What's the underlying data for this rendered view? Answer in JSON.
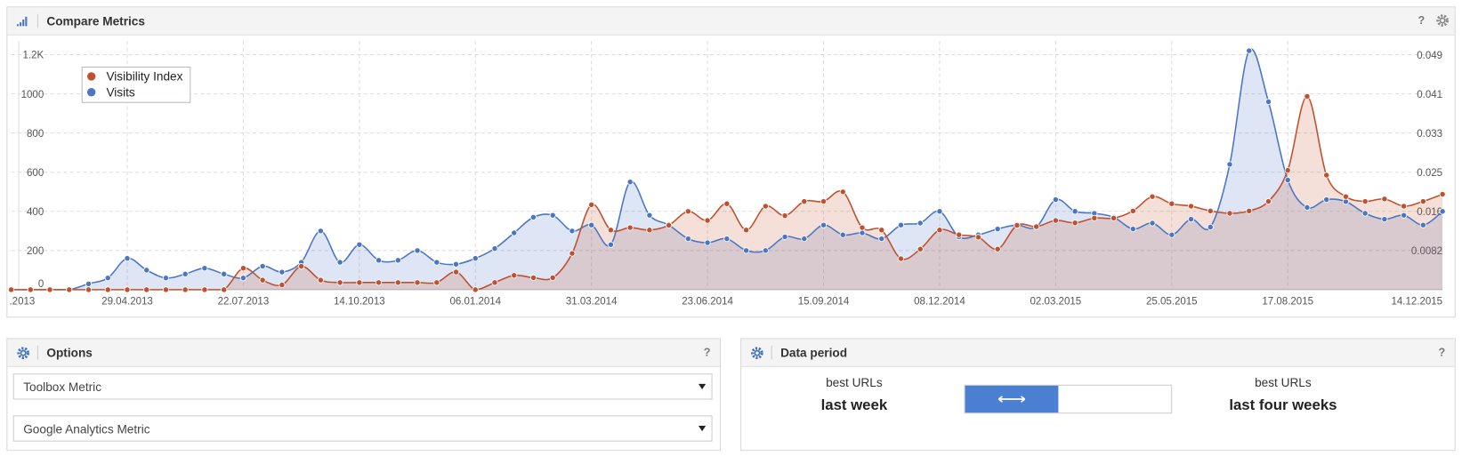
{
  "header": {
    "title": "Compare Metrics",
    "help": "?"
  },
  "chart_data": {
    "type": "area-line",
    "categories": [
      ".2013",
      null,
      null,
      null,
      null,
      null,
      "29.04.2013",
      null,
      null,
      null,
      null,
      null,
      "22.07.2013",
      null,
      null,
      null,
      null,
      null,
      "14.10.2013",
      null,
      null,
      null,
      null,
      null,
      "06.01.2014",
      null,
      null,
      null,
      null,
      null,
      "31.03.2014",
      null,
      null,
      null,
      null,
      null,
      "23.06.2014",
      null,
      null,
      null,
      null,
      null,
      "15.09.2014",
      null,
      null,
      null,
      null,
      null,
      "08.12.2014",
      null,
      null,
      null,
      null,
      null,
      "02.03.2015",
      null,
      null,
      null,
      null,
      null,
      "25.05.2015",
      null,
      null,
      null,
      null,
      null,
      "17.08.2015",
      null,
      null,
      null,
      null,
      null,
      null,
      null,
      "14.12.2015"
    ],
    "series": [
      {
        "name": "Visibility Index",
        "color": "#c0502e",
        "axis": "y2",
        "values": [
          0,
          0,
          0,
          0,
          0,
          0,
          0,
          0,
          0,
          0,
          0,
          0,
          0.0045,
          0.002,
          0.001,
          0.0049,
          0.002,
          0.0015,
          0.0015,
          0.0015,
          0.0015,
          0.0015,
          0.0015,
          0.0037,
          0,
          0.0015,
          0.003,
          0.0025,
          0.0025,
          0.0076,
          0.0178,
          0.0125,
          0.013,
          0.0125,
          0.0135,
          0.0164,
          0.0145,
          0.018,
          0.0125,
          0.0175,
          0.0155,
          0.0185,
          0.0185,
          0.0205,
          0.013,
          0.0125,
          0.0065,
          0.0085,
          0.0125,
          0.0115,
          0.011,
          0.0085,
          0.0135,
          0.0132,
          0.0145,
          0.014,
          0.015,
          0.015,
          0.0165,
          0.0195,
          0.018,
          0.0175,
          0.0165,
          0.016,
          0.0165,
          0.0185,
          0.025,
          0.0405,
          0.024,
          0.0195,
          0.0185,
          0.019,
          0.0175,
          0.0185,
          0.02
        ]
      },
      {
        "name": "Visits",
        "color": "#4a76c6",
        "values": [
          0,
          0,
          0,
          0,
          30,
          60,
          160,
          100,
          60,
          80,
          110,
          80,
          60,
          120,
          90,
          140,
          300,
          140,
          230,
          150,
          150,
          200,
          140,
          130,
          160,
          210,
          290,
          370,
          380,
          300,
          330,
          230,
          550,
          380,
          330,
          260,
          240,
          260,
          200,
          200,
          270,
          260,
          330,
          280,
          290,
          260,
          330,
          340,
          400,
          270,
          280,
          310,
          330,
          320,
          460,
          400,
          390,
          370,
          310,
          340,
          280,
          360,
          320,
          640,
          1220,
          960,
          560,
          420,
          460,
          450,
          390,
          360,
          380,
          330,
          400
        ]
      }
    ],
    "ylim": [
      0,
      1270
    ],
    "yticks": [
      0,
      200,
      400,
      600,
      800,
      1000,
      {
        "value": 1200,
        "label": "1.2K"
      }
    ],
    "y2lim": [
      0,
      0.0521
    ],
    "y2ticks": [
      0.0082,
      {
        "value": 0.0164,
        "label": "0.016"
      },
      {
        "value": 0.0246,
        "label": "0.025"
      },
      {
        "value": 0.0328,
        "label": "0.033"
      },
      0.041,
      {
        "value": 0.0492,
        "label": "0.049"
      }
    ],
    "grid": true,
    "legend": "top-left"
  },
  "options": {
    "title": "Options",
    "help": "?",
    "selects": [
      "Toolbox Metric",
      "Google Analytics Metric"
    ]
  },
  "data_period": {
    "title": "Data period",
    "help": "?",
    "left": {
      "caption": "best URLs",
      "label": "last week"
    },
    "right": {
      "caption": "best URLs",
      "label": "last four weeks"
    }
  }
}
